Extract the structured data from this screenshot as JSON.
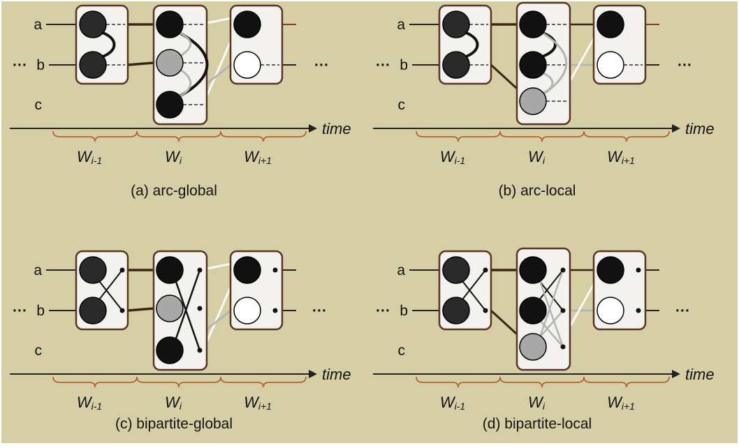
{
  "colors": {
    "background": "#d6cfa6",
    "box_fill": "#f3f2ee",
    "box_stroke": "#5a3322",
    "axis": "#222222",
    "brace": "#b5642e",
    "node_black": "#111111",
    "node_gray": "#a8a8a8",
    "node_white": "#ffffff",
    "gray_link": "#b4b4b4",
    "white_link": "#fbfbf5"
  },
  "panels": [
    {
      "id": "a",
      "variant": "arc",
      "local": false,
      "caption": "(a) arc-global",
      "rows": {
        "a": "a",
        "b": "b",
        "c": "c"
      },
      "left_ellipsis": "···",
      "right_ellipsis": "···",
      "time_label": "time",
      "windows": [
        {
          "main": "W",
          "sub": "i-1"
        },
        {
          "main": "W",
          "sub": "i"
        },
        {
          "main": "W",
          "sub": "i+1"
        }
      ]
    },
    {
      "id": "b",
      "variant": "arc",
      "local": true,
      "caption": "(b) arc-local",
      "rows": {
        "a": "a",
        "b": "b",
        "c": "c"
      },
      "left_ellipsis": "···",
      "right_ellipsis": "···",
      "time_label": "time",
      "windows": [
        {
          "main": "W",
          "sub": "i-1"
        },
        {
          "main": "W",
          "sub": "i"
        },
        {
          "main": "W",
          "sub": "i+1"
        }
      ]
    },
    {
      "id": "c",
      "variant": "bipartite",
      "local": false,
      "caption": "(c) bipartite-global",
      "rows": {
        "a": "a",
        "b": "b",
        "c": "c"
      },
      "left_ellipsis": "···",
      "right_ellipsis": "···",
      "time_label": "time",
      "windows": [
        {
          "main": "W",
          "sub": "i-1"
        },
        {
          "main": "W",
          "sub": "i"
        },
        {
          "main": "W",
          "sub": "i+1"
        }
      ]
    },
    {
      "id": "d",
      "variant": "bipartite",
      "local": true,
      "caption": "(d) bipartite-local",
      "rows": {
        "a": "a",
        "b": "b",
        "c": "c"
      },
      "left_ellipsis": "···",
      "right_ellipsis": "···",
      "time_label": "time",
      "windows": [
        {
          "main": "W",
          "sub": "i-1"
        },
        {
          "main": "W",
          "sub": "i"
        },
        {
          "main": "W",
          "sub": "i+1"
        }
      ]
    }
  ]
}
